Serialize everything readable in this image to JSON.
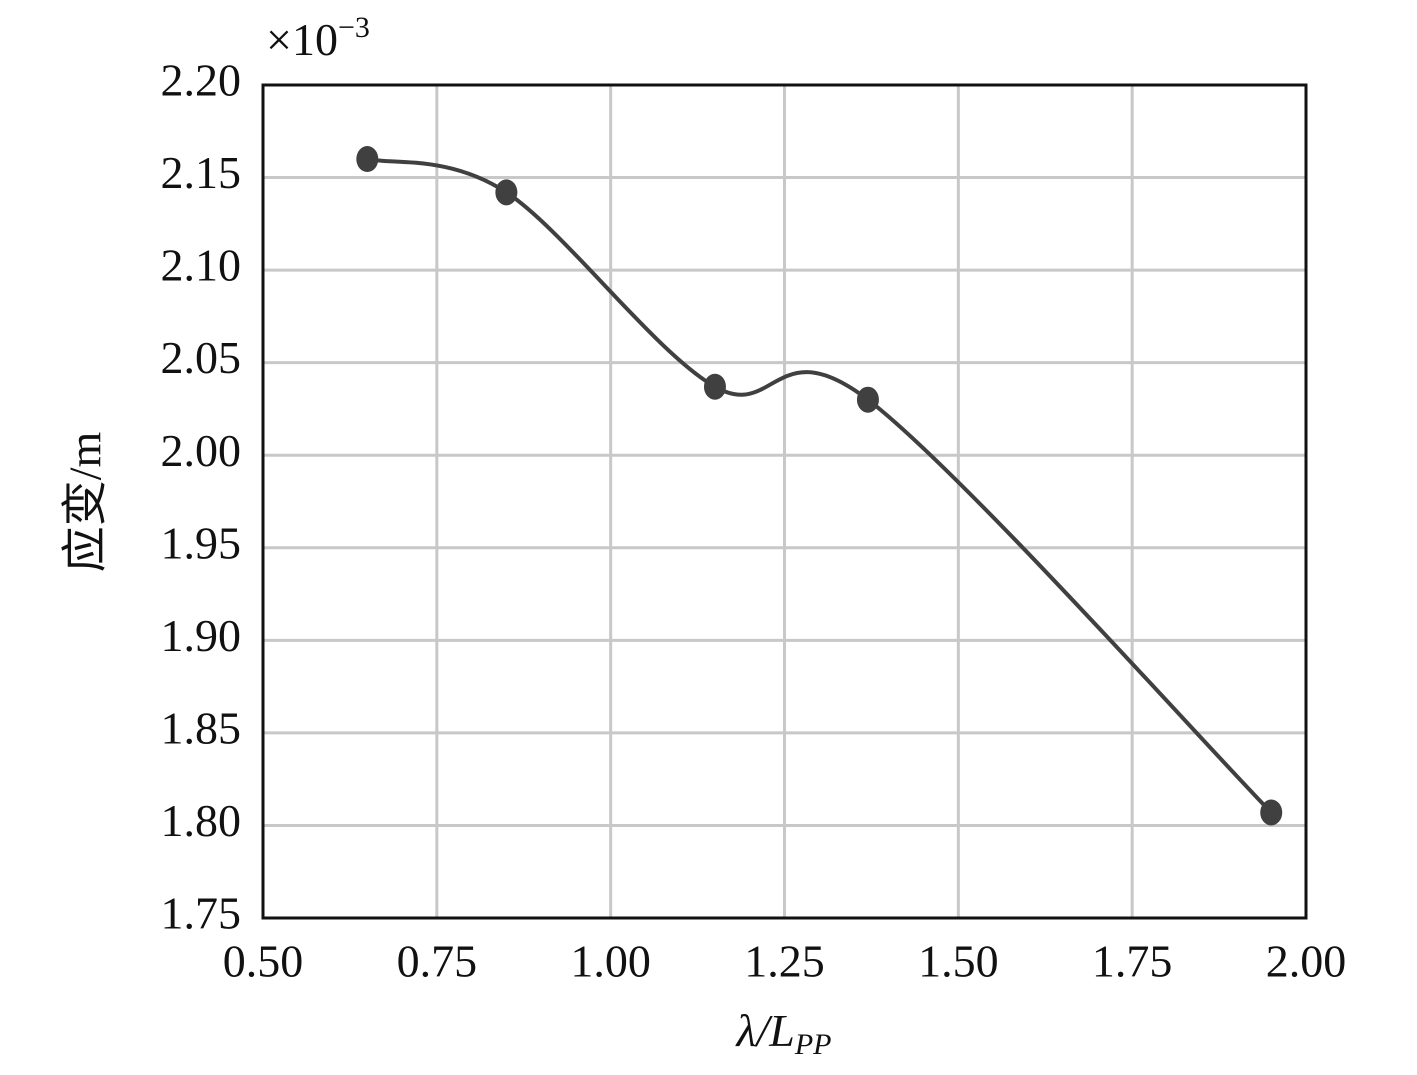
{
  "chart_data": {
    "type": "line",
    "multiplier": {
      "base": "×10",
      "exp": "−3"
    },
    "ylabel": "应变/m",
    "xlabel": {
      "main": "λ/L",
      "sub": "PP"
    },
    "x": [
      0.65,
      0.85,
      1.15,
      1.37,
      1.95
    ],
    "series": [
      {
        "color": "#404040",
        "values": [
          2.16,
          2.142,
          2.037,
          2.03,
          1.807
        ]
      }
    ],
    "xlim": [
      0.5,
      2.0
    ],
    "xticks": [
      {
        "value": 0.5,
        "label": "0.50"
      },
      {
        "value": 0.75,
        "label": "0.75"
      },
      {
        "value": 1.0,
        "label": "1.00"
      },
      {
        "value": 1.25,
        "label": "1.25"
      },
      {
        "value": 1.5,
        "label": "1.50"
      },
      {
        "value": 1.75,
        "label": "1.75"
      },
      {
        "value": 2.0,
        "label": "2.00"
      }
    ],
    "ylim": [
      1.75,
      2.2
    ],
    "yticks": [
      {
        "value": 1.75,
        "label": "1.75"
      },
      {
        "value": 1.8,
        "label": "1.80"
      },
      {
        "value": 1.85,
        "label": "1.85"
      },
      {
        "value": 1.9,
        "label": "1.90"
      },
      {
        "value": 1.95,
        "label": "1.95"
      },
      {
        "value": 2.0,
        "label": "2.00"
      },
      {
        "value": 2.05,
        "label": "2.05"
      },
      {
        "value": 2.1,
        "label": "2.10"
      },
      {
        "value": 2.15,
        "label": "2.15"
      },
      {
        "value": 2.2,
        "label": "2.20"
      }
    ],
    "grid": true
  }
}
